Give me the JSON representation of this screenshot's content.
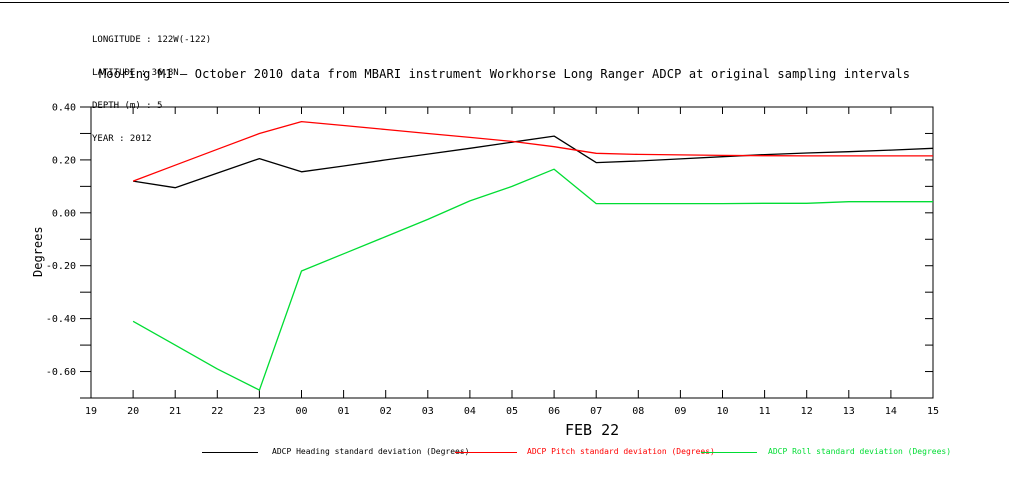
{
  "header": {
    "lines": [
      "LONGITUDE : 122W(-122)",
      "LATITUDE : 36.8N",
      "DEPTH (m) : 5",
      "YEAR : 2012"
    ]
  },
  "chart_data": {
    "type": "line",
    "title": "Mooring M1 — October 2010 data from MBARI instrument Workhorse Long Ranger ADCP at original sampling intervals",
    "xlabel": "FEB 22",
    "ylabel": "Degrees",
    "ylim": [
      -0.7,
      0.4
    ],
    "y_major_ticks": [
      0.4,
      0.2,
      0.0,
      -0.2,
      -0.4,
      -0.6
    ],
    "y_minor_step": 0.1,
    "grid": false,
    "legend_position": "bottom",
    "x_tick_labels": [
      "19",
      "20",
      "21",
      "22",
      "23",
      "00",
      "01",
      "02",
      "03",
      "04",
      "05",
      "06",
      "07",
      "08",
      "09",
      "10",
      "11",
      "12",
      "13",
      "14",
      "15"
    ],
    "categories": [
      "20",
      "21",
      "22",
      "23",
      "00",
      "01",
      "02",
      "03",
      "04",
      "05",
      "06",
      "07",
      "08",
      "09",
      "10",
      "11",
      "12",
      "13",
      "14",
      "15"
    ],
    "series": [
      {
        "key": "heading",
        "name": "ADCP Heading standard deviation (Degrees)",
        "color": "#000000",
        "values": [
          0.12,
          0.095,
          0.15,
          0.205,
          0.155,
          0.177,
          0.2,
          0.222,
          0.244,
          0.267,
          0.29,
          0.19,
          0.196,
          0.204,
          0.212,
          0.22,
          0.226,
          0.231,
          0.237,
          0.244
        ]
      },
      {
        "key": "pitch",
        "name": "ADCP Pitch standard deviation (Degrees)",
        "color": "#ff0000",
        "values": [
          0.12,
          0.18,
          0.24,
          0.3,
          0.345,
          0.33,
          0.315,
          0.3,
          0.285,
          0.27,
          0.25,
          0.225,
          0.221,
          0.219,
          0.217,
          0.216,
          0.215,
          0.215,
          0.215,
          0.215
        ]
      },
      {
        "key": "roll",
        "name": "ADCP Roll standard deviation (Degrees)",
        "color": "#00dd33",
        "values": [
          -0.41,
          -0.5,
          -0.59,
          -0.67,
          -0.22,
          -0.155,
          -0.09,
          -0.025,
          0.045,
          0.1,
          0.165,
          0.035,
          0.035,
          0.035,
          0.035,
          0.036,
          0.036,
          0.042,
          0.042,
          0.042
        ]
      }
    ]
  }
}
